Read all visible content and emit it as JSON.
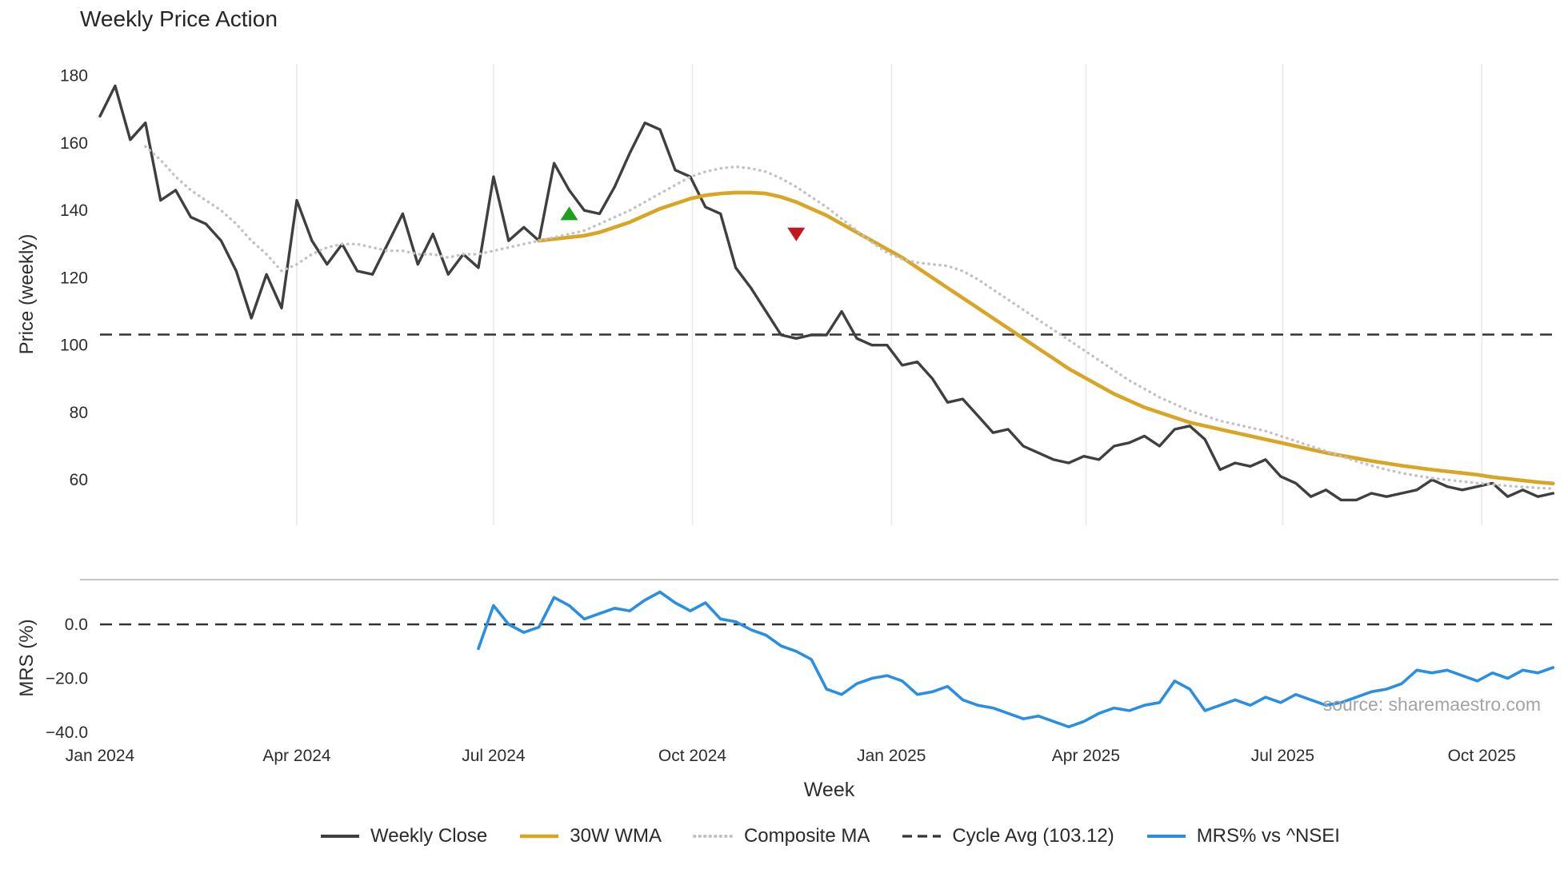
{
  "title": "Weekly Price Action",
  "watermark": "source: sharemaestro.com",
  "chart_data": {
    "type": "line",
    "title": "Weekly Price Action",
    "xlabel": "Week",
    "x_unit": "weeks since 2024-01-01",
    "x_tick_labels": [
      "Jan 2024",
      "Apr 2024",
      "Jul 2024",
      "Oct 2024",
      "Jan 2025",
      "Apr 2025",
      "Jul 2025",
      "Oct 2025"
    ],
    "x_tick_weeks": [
      0,
      13,
      26,
      39.14,
      52.29,
      65.14,
      78.14,
      91.29
    ],
    "grid": {
      "vertical_top_panel": true,
      "color": "#e9e9e9"
    },
    "legend_position": "lower center",
    "legend": [
      {
        "label": "Weekly Close",
        "color": "#3f3f3f",
        "style": "solid"
      },
      {
        "label": "30W WMA",
        "color": "#d8a525",
        "style": "solid"
      },
      {
        "label": "Composite MA",
        "color": "#c2c2c2",
        "style": "dotted"
      },
      {
        "label": "Cycle Avg (103.12)",
        "color": "#333333",
        "style": "dashed"
      },
      {
        "label": "MRS% vs ^NSEI",
        "color": "#2a8fe0",
        "style": "solid"
      }
    ],
    "panels": [
      {
        "name": "price",
        "ylabel": "Price (weekly)",
        "ylim": [
          46.5,
          183.5
        ],
        "yticks": [
          60,
          80,
          100,
          120,
          140,
          160,
          180
        ],
        "hlines": [
          {
            "label": "Cycle Avg (103.12)",
            "value": 103.12,
            "color": "#333333",
            "style": "dashed"
          }
        ],
        "markers": [
          {
            "shape": "triangle-up",
            "week": 31,
            "value": 139,
            "color": "#1aa21a"
          },
          {
            "shape": "triangle-down",
            "week": 46,
            "value": 133,
            "color": "#c5161d"
          }
        ],
        "series": [
          {
            "name": "Weekly Close",
            "color": "#3f3f3f",
            "style": "solid",
            "width": 3.4,
            "start_week": 0,
            "values": [
              168,
              177,
              161,
              166,
              143,
              146,
              138,
              136,
              131,
              122,
              108,
              121,
              111,
              143,
              131,
              124,
              130,
              122,
              121,
              130,
              139,
              124,
              133,
              121,
              127,
              123,
              150,
              131,
              135,
              131,
              154,
              146,
              140,
              139,
              147,
              157,
              166,
              164,
              152,
              150,
              141,
              139,
              123,
              117,
              110,
              103,
              102,
              103,
              103,
              110,
              102,
              100,
              100,
              94,
              95,
              90,
              83,
              84,
              79,
              74,
              75,
              70,
              68,
              66,
              65,
              67,
              66,
              70,
              71,
              73,
              70,
              75,
              76,
              72,
              63,
              65,
              64,
              66,
              61,
              59,
              55,
              57,
              54,
              54,
              56,
              55,
              56,
              57,
              60,
              58,
              57,
              58,
              59,
              55,
              57,
              55,
              56
            ]
          },
          {
            "name": "30W WMA",
            "color": "#d8a525",
            "style": "solid",
            "width": 4.6,
            "start_week": 29,
            "values": [
              131,
              131.5,
              132,
              132.5,
              133.5,
              135,
              136.5,
              138.5,
              140.5,
              142,
              143.5,
              144.5,
              145,
              145.3,
              145.3,
              145,
              144,
              142.5,
              140.5,
              138.5,
              136,
              133.5,
              131,
              128.5,
              126,
              123,
              120,
              117,
              114,
              111,
              108,
              105,
              102,
              99,
              96,
              93,
              90.5,
              88,
              85.5,
              83.5,
              81.5,
              80,
              78.5,
              77,
              76,
              75,
              74,
              73,
              72,
              71,
              70,
              69,
              68,
              67.2,
              66.4,
              65.6,
              64.9,
              64.2,
              63.6,
              63,
              62.5,
              62,
              61.5,
              60.8,
              60.3,
              59.8,
              59.3,
              58.9
            ]
          },
          {
            "name": "Composite MA",
            "color": "#c2c2c2",
            "style": "dotted",
            "width": 3.4,
            "start_week": 3,
            "values": [
              159,
              155,
              150,
              146,
              143,
              140,
              136,
              131,
              127,
              122,
              124,
              127,
              129,
              130,
              130,
              129,
              128,
              128,
              127,
              127,
              126,
              127,
              127,
              128,
              129,
              130,
              131,
              132,
              133,
              134,
              136,
              138,
              140,
              142.5,
              145,
              147.5,
              150,
              151.5,
              152.5,
              153,
              152.5,
              151.5,
              149.5,
              147,
              144,
              141,
              137.5,
              134,
              130.5,
              127.5,
              125.5,
              124.5,
              124,
              123.5,
              122,
              119.5,
              116.5,
              113.5,
              110.5,
              107.5,
              104.5,
              101.5,
              98.5,
              95.5,
              92.5,
              89.5,
              87,
              84.5,
              82.5,
              80.5,
              79,
              77.5,
              76.5,
              75.5,
              74.5,
              73,
              71.5,
              70,
              68.5,
              67,
              65.5,
              64.2,
              63,
              62,
              61.2,
              60.5,
              60,
              59.5,
              59,
              58.6,
              58.2,
              57.9,
              57.6,
              57.4
            ]
          }
        ]
      },
      {
        "name": "mrs",
        "ylabel": "MRS (%)",
        "ylim": [
          -41.8,
          16.6
        ],
        "yticks": [
          0,
          -20,
          -40
        ],
        "ytick_labels": [
          "0.0",
          "−20.0",
          "−40.0"
        ],
        "hlines": [
          {
            "label": "",
            "value": 0,
            "color": "#333333",
            "style": "dashed"
          }
        ],
        "series": [
          {
            "name": "MRS% vs ^NSEI",
            "color": "#2a8fe0",
            "style": "solid",
            "width": 3.6,
            "start_week": 25,
            "values": [
              -9,
              7,
              0,
              -3,
              -1,
              10,
              7,
              2,
              4,
              6,
              5,
              9,
              12,
              8,
              5,
              8,
              2,
              1,
              -2,
              -4,
              -8,
              -10,
              -13,
              -24,
              -26,
              -22,
              -20,
              -19,
              -21,
              -26,
              -25,
              -23,
              -28,
              -30,
              -31,
              -33,
              -35,
              -34,
              -36,
              -38,
              -36,
              -33,
              -31,
              -32,
              -30,
              -29,
              -21,
              -24,
              -32,
              -30,
              -28,
              -30,
              -27,
              -29,
              -26,
              -28,
              -30,
              -29,
              -27,
              -25,
              -24,
              -22,
              -17,
              -18,
              -17,
              -19,
              -21,
              -18,
              -20,
              -17,
              -18,
              -16
            ]
          }
        ]
      }
    ]
  }
}
